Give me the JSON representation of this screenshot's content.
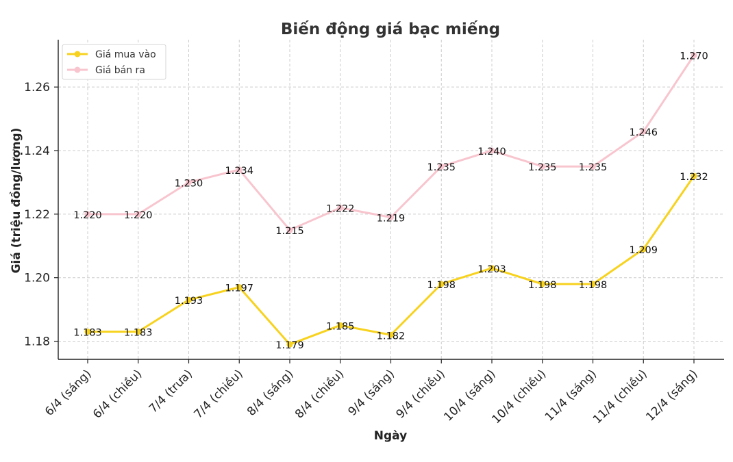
{
  "chart_data": {
    "type": "line",
    "title": "Biến động giá bạc miếng",
    "xlabel": "Ngày",
    "ylabel": "Giá (triệu đồng/lượng)",
    "categories": [
      "6/4 (sáng)",
      "6/4 (chiều)",
      "7/4 (trưa)",
      "7/4 (chiều)",
      "8/4 (sáng)",
      "8/4 (chiều)",
      "9/4 (sáng)",
      "9/4 (chiều)",
      "10/4 (sáng)",
      "10/4 (chiều)",
      "11/4 (sáng)",
      "11/4 (chiều)",
      "12/4 (sáng)"
    ],
    "series": [
      {
        "name": "Giá mua vào",
        "color": "#f7d21e",
        "values": [
          1.183,
          1.183,
          1.193,
          1.197,
          1.179,
          1.185,
          1.182,
          1.198,
          1.203,
          1.198,
          1.198,
          1.209,
          1.232
        ],
        "value_labels": [
          "1.183",
          "1.183",
          "1.193",
          "1.197",
          "1.179",
          "1.185",
          "1.182",
          "1.198",
          "1.203",
          "1.198",
          "1.198",
          "1.209",
          "1.232"
        ]
      },
      {
        "name": "Giá bán ra",
        "color": "#f8c5ce",
        "values": [
          1.22,
          1.22,
          1.23,
          1.234,
          1.215,
          1.222,
          1.219,
          1.235,
          1.24,
          1.235,
          1.235,
          1.246,
          1.27
        ],
        "value_labels": [
          "1.220",
          "1.220",
          "1.230",
          "1.234",
          "1.215",
          "1.222",
          "1.219",
          "1.235",
          "1.240",
          "1.235",
          "1.235",
          "1.246",
          "1.270"
        ]
      }
    ],
    "yticks": [
      1.18,
      1.2,
      1.22,
      1.24,
      1.26
    ],
    "ytick_labels": [
      "1.18",
      "1.20",
      "1.22",
      "1.24",
      "1.26"
    ],
    "ylim": [
      1.1743,
      1.2749
    ],
    "grid": true,
    "legend_position": "top-left"
  }
}
